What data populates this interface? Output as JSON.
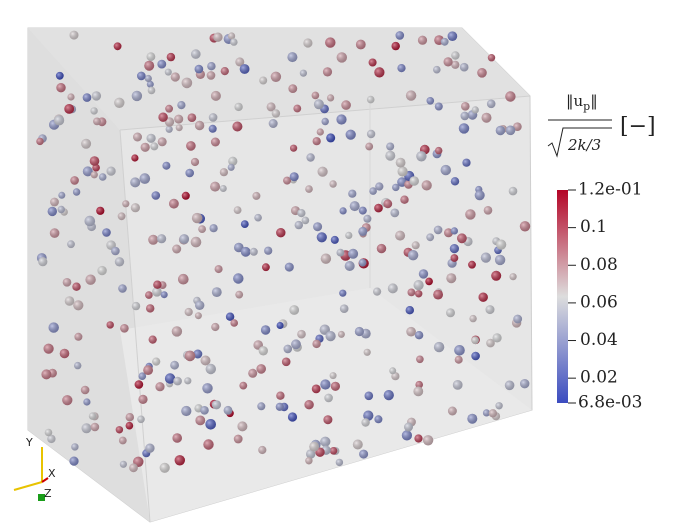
{
  "colorbar": {
    "title": {
      "numerator": "‖u",
      "subscript": "p",
      "numerator_end": "‖",
      "denominator": "2k/3",
      "unit": "[−]"
    },
    "range": [
      {
        "value": 0.0068,
        "label": "6.8e-03"
      },
      {
        "value": 0.12,
        "label": "1.2e-01"
      }
    ],
    "ticks": [
      0.02,
      0.04,
      0.06,
      0.08,
      0.1
    ],
    "colors": [
      "#3b4cc0",
      "#dddddd",
      "#b40426"
    ]
  },
  "orientation_axes": {
    "y": "Y",
    "x": "X",
    "z": "Z"
  }
}
